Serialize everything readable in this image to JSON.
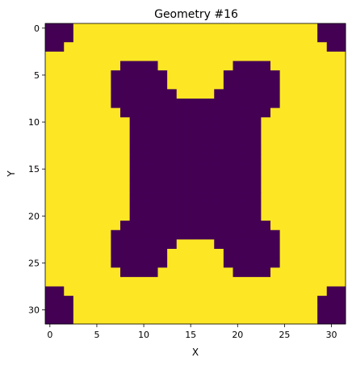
{
  "chart_data": {
    "type": "heatmap",
    "title": "Geometry #16",
    "xlabel": "X",
    "ylabel": "Y",
    "xlim": [
      -0.5,
      31.5
    ],
    "ylim": [
      31.5,
      -0.5
    ],
    "grid": false,
    "colormap": {
      "0": "#440154",
      "1": "#fde725"
    },
    "xticks": [
      0,
      5,
      10,
      15,
      20,
      25,
      30
    ],
    "yticks": [
      0,
      5,
      10,
      15,
      20,
      25,
      30
    ],
    "matrix": [
      "00011111111111111111111111111000",
      "00011111111111111111111111111000",
      "00111111111111111111111111111100",
      "11111111111111111111111111111111",
      "11111111000011111111000011111111",
      "11111110000001111110000001111111",
      "11111110000001111110000001111111",
      "11111110000000111100000001111111",
      "11111110000000000000000001111111",
      "11111111000000000000000011111111",
      "11111111100000000000000111111111",
      "11111111100000000000000111111111",
      "11111111100000000000000111111111",
      "11111111100000000000000111111111",
      "11111111100000000000000111111111",
      "11111111100000000000000111111111",
      "11111111100000000000000111111111",
      "11111111100000000000000111111111",
      "11111111100000000000000111111111",
      "11111111100000000000000111111111",
      "11111111100000000000000111111111",
      "11111111000000000000000011111111",
      "11111110000000000000000001111111",
      "11111110000000111100000001111111",
      "11111110000001111110000001111111",
      "11111110000001111110000001111111",
      "11111111000011111111000011111111",
      "11111111111111111111111111111111",
      "00111111111111111111111111111100",
      "00011111111111111111111111111000",
      "00011111111111111111111111111000",
      "00011111111111111111111111111000"
    ]
  }
}
